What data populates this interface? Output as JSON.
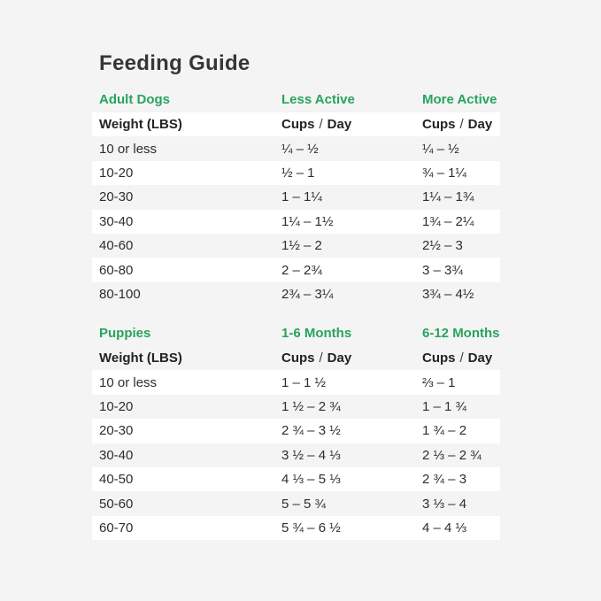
{
  "colors": {
    "background": "#f4f4f4",
    "stripe_white": "#ffffff",
    "accent_green": "#28a35f",
    "text": "#2d2d2d",
    "heading_text": "#33373b"
  },
  "page": {
    "title": "Feeding Guide"
  },
  "tables": [
    {
      "section_label": "Adult Dogs",
      "col2_label": "Less Active",
      "col3_label": "More Active",
      "header": {
        "col1": "Weight (LBS)",
        "cups": "Cups",
        "slash": "/",
        "day": "Day"
      },
      "rows": [
        {
          "weight": "10 or less",
          "col2": "¼ – ½",
          "col3": "¼ – ½"
        },
        {
          "weight": "10-20",
          "col2": "½ – 1",
          "col3": "¾ – 1¼"
        },
        {
          "weight": "20-30",
          "col2": "1 – 1¼",
          "col3": "1¼ – 1¾"
        },
        {
          "weight": "30-40",
          "col2": "1¼ – 1½",
          "col3": "1¾ – 2¼"
        },
        {
          "weight": "40-60",
          "col2": "1½ – 2",
          "col3": "2½ – 3"
        },
        {
          "weight": "60-80",
          "col2": "2 – 2¾",
          "col3": "3 – 3¾"
        },
        {
          "weight": "80-100",
          "col2": "2¾ – 3¼",
          "col3": "3¾ – 4½"
        }
      ]
    },
    {
      "section_label": "Puppies",
      "col2_label": "1-6 Months",
      "col3_label": "6-12 Months",
      "header": {
        "col1": "Weight (LBS)",
        "cups": "Cups",
        "slash": "/",
        "day": "Day"
      },
      "rows": [
        {
          "weight": "10 or less",
          "col2": "1 – 1 ½",
          "col3": "⅔ – 1"
        },
        {
          "weight": "10-20",
          "col2": "1 ½ – 2 ¾",
          "col3": "1 – 1 ¾"
        },
        {
          "weight": "20-30",
          "col2": "2 ¾ – 3 ½",
          "col3": "1 ¾ – 2"
        },
        {
          "weight": "30-40",
          "col2": "3 ½ – 4 ⅓",
          "col3": "2 ⅓ – 2 ¾"
        },
        {
          "weight": "40-50",
          "col2": "4 ⅓ – 5 ⅓",
          "col3": "2 ¾ – 3"
        },
        {
          "weight": "50-60",
          "col2": "5 – 5 ¾",
          "col3": "3 ⅓ – 4"
        },
        {
          "weight": "60-70",
          "col2": "5 ¾ – 6 ½",
          "col3": "4 – 4 ⅓"
        }
      ]
    }
  ]
}
